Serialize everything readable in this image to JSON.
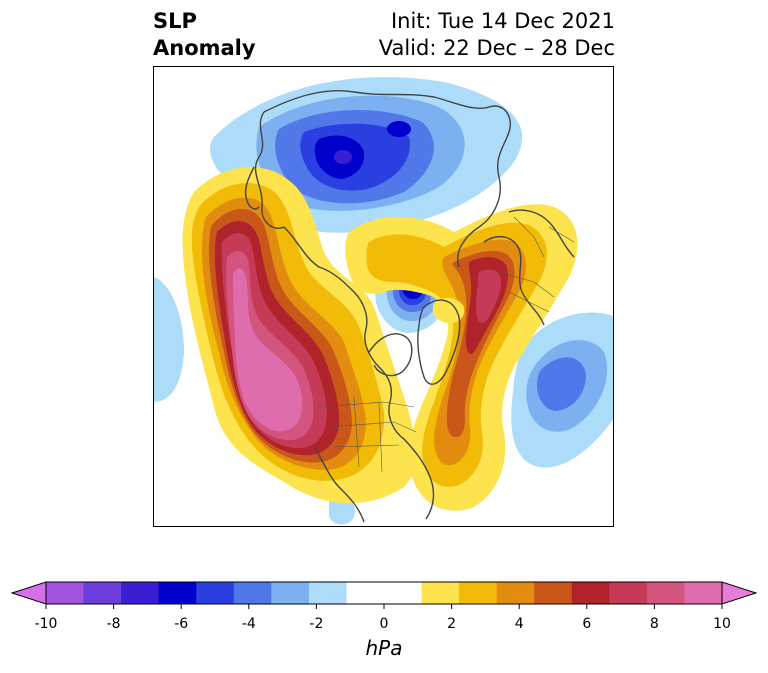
{
  "header": {
    "variable": "SLP",
    "subtitle": "Anomaly",
    "init": "Init: Tue 14 Dec 2021",
    "valid": "Valid: 22 Dec – 28 Dec"
  },
  "colorbar": {
    "label": "hPa",
    "ticks": [
      "-10",
      "-8",
      "-6",
      "-4",
      "-2",
      "0",
      "2",
      "4",
      "6",
      "8",
      "10"
    ],
    "colors": {
      "under": "#d670e8",
      "over": "#e87ad8",
      "bins": [
        "#a254e0",
        "#6c3edc",
        "#3a1fd2",
        "#0000cc",
        "#2a3fe0",
        "#5078e8",
        "#7cb0f0",
        "#acdcfa",
        "#ffffff",
        "#ffffff",
        "#fde44e",
        "#f2bb08",
        "#e38d10",
        "#c9571a",
        "#b0232a",
        "#c43a57",
        "#d2547f",
        "#df6dad"
      ]
    }
  },
  "map": {
    "projection": "north-polar-stereographic",
    "features": {
      "positive_anomaly_centers": [
        "northeast-pacific-alaska-high",
        "greenland-scandinavia-ridge",
        "north-atlantic-high"
      ],
      "negative_anomaly_centers": [
        "siberia-low",
        "arctic-basin-low",
        "east-atlantic-low"
      ]
    },
    "colors": {
      "coast": "#444444",
      "frame": "#000000"
    }
  }
}
